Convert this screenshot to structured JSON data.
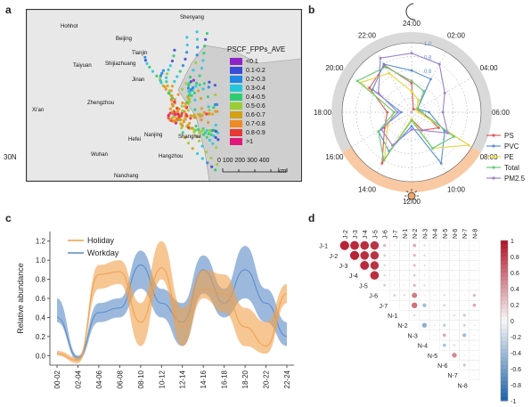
{
  "panels": {
    "a": "a",
    "b": "b",
    "c": "c",
    "d": "d"
  },
  "map": {
    "legend_title": "PSCF_FPPs_AVE",
    "legend": [
      {
        "label": "<0.1",
        "color": "#8e24c8"
      },
      {
        "label": "0.1-0.2",
        "color": "#3a4bd6"
      },
      {
        "label": "0.2-0.3",
        "color": "#1e88e5"
      },
      {
        "label": "0.3-0.4",
        "color": "#26c6da"
      },
      {
        "label": "0.4-0.5",
        "color": "#2ecc71"
      },
      {
        "label": "0.5-0.6",
        "color": "#9acd32"
      },
      {
        "label": "0.6-0.7",
        "color": "#d4a017"
      },
      {
        "label": "0.7-0.8",
        "color": "#f08a24"
      },
      {
        "label": "0.8-0.9",
        "color": "#e53935"
      },
      {
        "label": ">1",
        "color": "#e0187a"
      }
    ],
    "cities": [
      "Shenyang",
      "Hohhot",
      "Beijing",
      "Tianjin",
      "Taiyuan",
      "Shijiazhuang",
      "Jinan",
      "Xi'an",
      "Zhengzhou",
      "Nanjing",
      "Hefei",
      "Shanghai",
      "Wuhan",
      "Hangzhou",
      "Nanchang"
    ],
    "lat_label": "30N",
    "scale_ticks": "0 100 200 300 400",
    "scale_unit": "km"
  },
  "polar": {
    "hours": [
      "24:00",
      "02:00",
      "04:00",
      "06:00",
      "08:00",
      "10:00",
      "12:00",
      "14:00",
      "16:00",
      "18:00",
      "20:00",
      "22:00"
    ],
    "radial_ticks": [
      "1.0",
      "0.8",
      "0.6"
    ],
    "legend": [
      {
        "name": "PS",
        "color": "#e05a5a"
      },
      {
        "name": "PVC",
        "color": "#5b8fd6"
      },
      {
        "name": "PE",
        "color": "#e8d43a"
      },
      {
        "name": "Total",
        "color": "#66cc77"
      },
      {
        "name": "PM2.5",
        "color": "#9b7fd1"
      }
    ],
    "series": {
      "PS": [
        0.42,
        0.05,
        0.08,
        0.15,
        0.45,
        0.3,
        0.1,
        0.85,
        0.45,
        0.35,
        0.7,
        0.78
      ],
      "PVC": [
        0.6,
        0.55,
        0.1,
        0.25,
        0.55,
        0.85,
        0.2,
        0.65,
        0.55,
        0.15,
        0.65,
        0.8
      ],
      "PE": [
        0.3,
        0.2,
        0.08,
        0.1,
        0.95,
        0.6,
        0.1,
        0.78,
        0.4,
        0.25,
        0.85,
        0.65
      ],
      "Total": [
        0.45,
        0.35,
        0.1,
        0.15,
        0.7,
        0.6,
        0.12,
        0.8,
        0.55,
        0.25,
        0.9,
        0.75
      ],
      "PM2.5": [
        0.85,
        0.8,
        0.55,
        0.45,
        0.6,
        0.3,
        0.25,
        0.55,
        0.5,
        0.2,
        0.55,
        0.9
      ]
    }
  },
  "chart_data": [
    {
      "type": "area",
      "ylabel": "Relative abundance",
      "categories": [
        "00-02",
        "02-04",
        "04-06",
        "06-08",
        "08-10",
        "10-12",
        "12-14",
        "14-16",
        "16-18",
        "18-20",
        "20-22",
        "22-24"
      ],
      "ylim": [
        -0.1,
        1.3
      ],
      "yticks": [
        "0.0",
        "0.2",
        "0.4",
        "0.6",
        "0.8",
        "1.0",
        "1.2"
      ],
      "series": [
        {
          "name": "Holiday",
          "color": "#f0a04b",
          "mean": [
            0.02,
            -0.05,
            0.85,
            0.88,
            0.35,
            0.92,
            0.3,
            0.7,
            0.65,
            0.3,
            0.1,
            0.65
          ],
          "lower": [
            0.0,
            -0.08,
            0.7,
            0.75,
            0.1,
            0.8,
            0.1,
            0.6,
            0.45,
            0.1,
            0.02,
            0.55
          ],
          "upper": [
            0.05,
            -0.02,
            0.95,
            1.0,
            0.55,
            1.2,
            0.5,
            0.9,
            0.85,
            0.5,
            0.35,
            0.75
          ]
        },
        {
          "name": "Workday",
          "color": "#5a8ac6",
          "mean": [
            0.4,
            -0.02,
            0.45,
            0.5,
            0.95,
            0.55,
            0.35,
            0.9,
            0.55,
            0.9,
            0.55,
            0.2
          ],
          "lower": [
            0.35,
            -0.05,
            0.35,
            0.4,
            0.7,
            0.4,
            0.1,
            0.65,
            0.4,
            0.6,
            0.35,
            0.1
          ],
          "upper": [
            0.6,
            0.0,
            0.55,
            0.6,
            1.1,
            0.7,
            0.55,
            1.05,
            0.7,
            1.15,
            0.7,
            0.35
          ]
        }
      ]
    },
    {
      "type": "heatmap",
      "labels": [
        "J-1",
        "J-2",
        "J-3",
        "J-4",
        "J-5",
        "J-6",
        "J-7",
        "N-1",
        "N-2",
        "N-3",
        "N-4",
        "N-5",
        "N-6",
        "N-7",
        "N-8"
      ],
      "colorbar": {
        "ticks": [
          "1",
          "0.8",
          "0.6",
          "0.4",
          "0.2",
          "0",
          "-0.2",
          "-0.4",
          "-0.6",
          "-0.8",
          "-1"
        ],
        "range": [
          -1,
          1
        ]
      },
      "values": [
        [
          0.95,
          0.92,
          0.9,
          0.88,
          0.3,
          0.15,
          0.1,
          0.35,
          0.2,
          0.1,
          0.05,
          -0.1,
          0.02,
          0.05
        ],
        [
          0.95,
          0.9,
          0.88,
          0.25,
          0.12,
          0.1,
          0.3,
          0.2,
          0.1,
          0.08,
          -0.15,
          0.05,
          0.02
        ],
        [
          0.92,
          0.88,
          0.22,
          0.15,
          0.1,
          0.28,
          0.18,
          0.1,
          0.05,
          -0.1,
          0.05,
          0.03
        ],
        [
          0.9,
          0.2,
          0.1,
          0.08,
          0.25,
          0.15,
          0.08,
          0.05,
          -0.08,
          0.04,
          0.02
        ],
        [
          0.25,
          0.12,
          0.1,
          0.3,
          0.2,
          0.1,
          -0.05,
          -0.12,
          0.06,
          0.03
        ],
        [
          -0.25,
          0.2,
          0.55,
          0.1,
          0.12,
          -0.2,
          0.1,
          -0.05,
          0.3
        ],
        [
          -0.1,
          0.6,
          -0.4,
          0.15,
          -0.25,
          -0.05,
          0.05,
          0.35
        ],
        [
          0.2,
          0.05,
          -0.1,
          0.08,
          0.2,
          -0.3,
          0.02
        ],
        [
          -0.5,
          0.15,
          -0.3,
          0.05,
          0.25,
          0.1
        ],
        [
          0.1,
          0.35,
          0.05,
          -0.4,
          0.08
        ],
        [
          -0.35,
          0.2,
          0.1,
          0.05
        ],
        [
          0.5,
          -0.1,
          0.03
        ],
        [
          -0.3,
          0.05
        ],
        [
          0.02
        ]
      ]
    }
  ]
}
